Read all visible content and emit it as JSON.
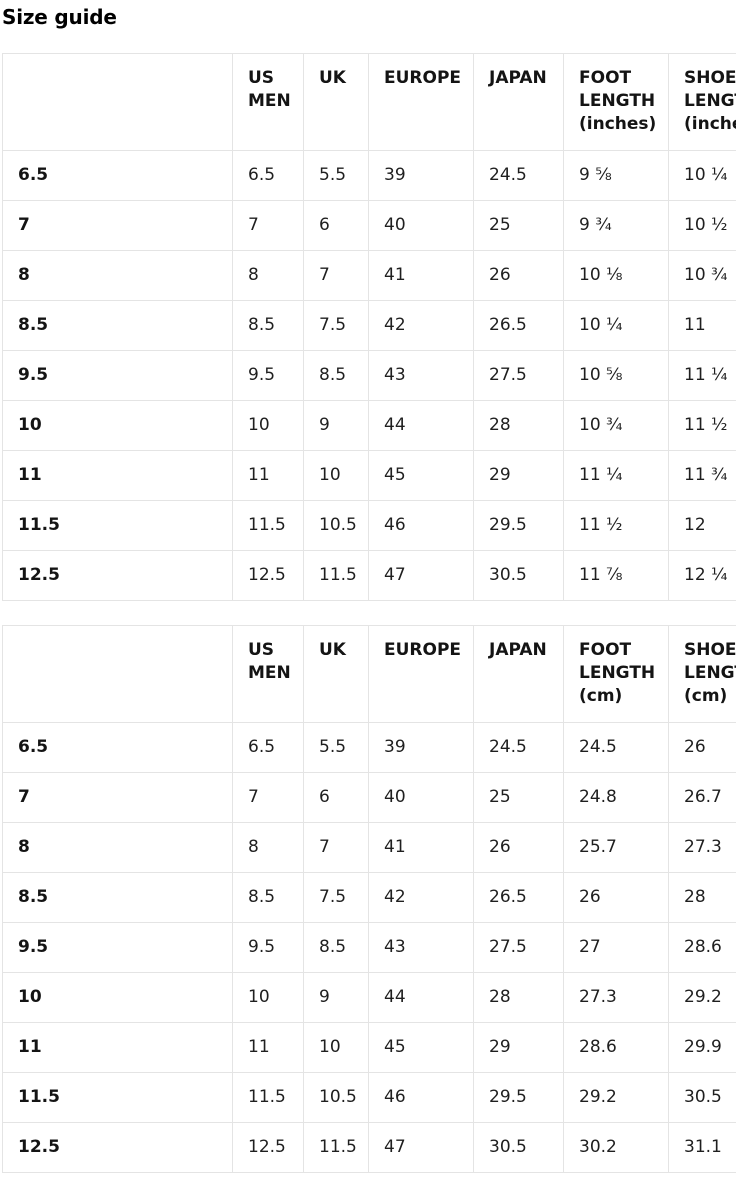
{
  "page_title": "Size guide",
  "colors": {
    "background": "#ffffff",
    "border": "#e4e4e4",
    "text": "#1b1b1b",
    "heading_text": "#000000"
  },
  "tables": [
    {
      "name": "size-guide-inches",
      "columns": [
        "",
        "US MEN",
        "UK",
        "EUROPE",
        "JAPAN",
        "FOOT LENGTH (inches)",
        "SHOES LENGTH (inches)"
      ],
      "rows": [
        {
          "label": "6.5",
          "values": [
            "6.5",
            "5.5",
            "39",
            "24.5",
            "9 ⅝",
            "10 ¼"
          ]
        },
        {
          "label": "7",
          "values": [
            "7",
            "6",
            "40",
            "25",
            "9 ¾",
            "10 ½"
          ]
        },
        {
          "label": "8",
          "values": [
            "8",
            "7",
            "41",
            "26",
            "10 ⅛",
            "10 ¾"
          ]
        },
        {
          "label": "8.5",
          "values": [
            "8.5",
            "7.5",
            "42",
            "26.5",
            "10 ¼",
            "11"
          ]
        },
        {
          "label": "9.5",
          "values": [
            "9.5",
            "8.5",
            "43",
            "27.5",
            "10 ⅝",
            "11 ¼"
          ]
        },
        {
          "label": "10",
          "values": [
            "10",
            "9",
            "44",
            "28",
            "10 ¾",
            "11 ½"
          ]
        },
        {
          "label": "11",
          "values": [
            "11",
            "10",
            "45",
            "29",
            "11 ¼",
            "11 ¾"
          ]
        },
        {
          "label": "11.5",
          "values": [
            "11.5",
            "10.5",
            "46",
            "29.5",
            "11 ½",
            "12"
          ]
        },
        {
          "label": "12.5",
          "values": [
            "12.5",
            "11.5",
            "47",
            "30.5",
            "11 ⅞",
            "12 ¼"
          ]
        }
      ]
    },
    {
      "name": "size-guide-cm",
      "columns": [
        "",
        "US MEN",
        "UK",
        "EUROPE",
        "JAPAN",
        "FOOT LENGTH (cm)",
        "SHOES LENGTH (cm)"
      ],
      "rows": [
        {
          "label": "6.5",
          "values": [
            "6.5",
            "5.5",
            "39",
            "24.5",
            "24.5",
            "26"
          ]
        },
        {
          "label": "7",
          "values": [
            "7",
            "6",
            "40",
            "25",
            "24.8",
            "26.7"
          ]
        },
        {
          "label": "8",
          "values": [
            "8",
            "7",
            "41",
            "26",
            "25.7",
            "27.3"
          ]
        },
        {
          "label": "8.5",
          "values": [
            "8.5",
            "7.5",
            "42",
            "26.5",
            "26",
            "28"
          ]
        },
        {
          "label": "9.5",
          "values": [
            "9.5",
            "8.5",
            "43",
            "27.5",
            "27",
            "28.6"
          ]
        },
        {
          "label": "10",
          "values": [
            "10",
            "9",
            "44",
            "28",
            "27.3",
            "29.2"
          ]
        },
        {
          "label": "11",
          "values": [
            "11",
            "10",
            "45",
            "29",
            "28.6",
            "29.9"
          ]
        },
        {
          "label": "11.5",
          "values": [
            "11.5",
            "10.5",
            "46",
            "29.5",
            "29.2",
            "30.5"
          ]
        },
        {
          "label": "12.5",
          "values": [
            "12.5",
            "11.5",
            "47",
            "30.5",
            "30.2",
            "31.1"
          ]
        }
      ]
    }
  ]
}
